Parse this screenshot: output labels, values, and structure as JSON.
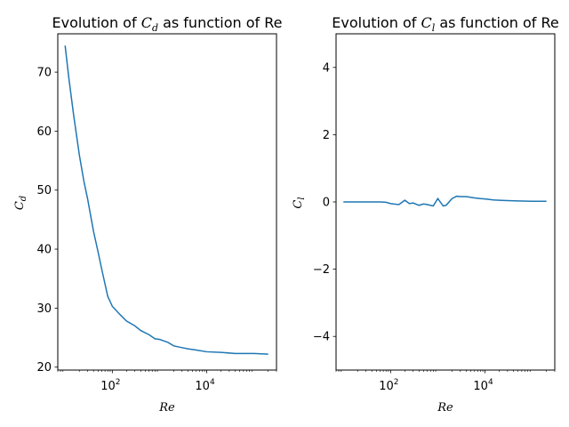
{
  "figure": {
    "background": "#ffffff",
    "line_color": "#1f77b4"
  },
  "chart_data": [
    {
      "type": "line",
      "title": "Evolution of C_d as function of Re",
      "title_prefix": "Evolution of ",
      "title_symbol": "C",
      "title_subscript": "d",
      "title_suffix": " as function of Re",
      "xlabel": "Re",
      "ylabel_symbol": "C",
      "ylabel_subscript": "d",
      "xscale": "log",
      "xlim": [
        7,
        300000
      ],
      "ylim": [
        19.5,
        76.5
      ],
      "xticks": [
        {
          "value": 100,
          "base": "10",
          "exp": "2"
        },
        {
          "value": 10000,
          "base": "10",
          "exp": "4"
        }
      ],
      "yticks": [
        {
          "value": 20,
          "label": "20"
        },
        {
          "value": 30,
          "label": "30"
        },
        {
          "value": 40,
          "label": "40"
        },
        {
          "value": 50,
          "label": "50"
        },
        {
          "value": 60,
          "label": "60"
        },
        {
          "value": 70,
          "label": "70"
        }
      ],
      "grid": false,
      "series": [
        {
          "x": [
            10,
            12,
            15,
            20,
            25,
            30,
            40,
            50,
            60,
            80,
            100,
            150,
            200,
            300,
            400,
            600,
            800,
            1000,
            1500,
            2000,
            3000,
            4000,
            6000,
            10000,
            20000,
            40000,
            60000,
            100000,
            200000
          ],
          "values": [
            74.5,
            69.0,
            63.0,
            56.0,
            51.5,
            48.5,
            43.0,
            39.5,
            36.5,
            32.0,
            30.3,
            28.8,
            27.8,
            27.0,
            26.2,
            25.5,
            24.8,
            24.7,
            24.2,
            23.6,
            23.3,
            23.1,
            22.9,
            22.6,
            22.5,
            22.3,
            22.3,
            22.3,
            22.2
          ]
        }
      ]
    },
    {
      "type": "line",
      "title": "Evolution of C_l as function of Re",
      "title_prefix": "Evolution of ",
      "title_symbol": "C",
      "title_subscript": "l",
      "title_suffix": " as function of Re",
      "xlabel": "Re",
      "ylabel_symbol": "C",
      "ylabel_subscript": "l",
      "xscale": "log",
      "xlim": [
        7,
        300000
      ],
      "ylim": [
        -5,
        5
      ],
      "xticks": [
        {
          "value": 100,
          "base": "10",
          "exp": "2"
        },
        {
          "value": 10000,
          "base": "10",
          "exp": "4"
        }
      ],
      "yticks": [
        {
          "value": -4,
          "label": "−4"
        },
        {
          "value": -2,
          "label": "−2"
        },
        {
          "value": 0,
          "label": "0"
        },
        {
          "value": 2,
          "label": "2"
        },
        {
          "value": 4,
          "label": "4"
        }
      ],
      "grid": false,
      "series": [
        {
          "x": [
            10,
            15,
            20,
            30,
            40,
            50,
            60,
            80,
            100,
            150,
            200,
            250,
            300,
            400,
            500,
            600,
            800,
            1000,
            1300,
            1500,
            2000,
            2500,
            3000,
            4000,
            6000,
            8000,
            10000,
            15000,
            20000,
            30000,
            50000,
            100000,
            200000
          ],
          "values": [
            0.0,
            0.0,
            0.0,
            0.0,
            0.0,
            0.0,
            0.0,
            -0.01,
            -0.05,
            -0.08,
            0.05,
            -0.05,
            -0.03,
            -0.1,
            -0.06,
            -0.08,
            -0.12,
            0.1,
            -0.12,
            -0.1,
            0.1,
            0.17,
            0.16,
            0.16,
            0.12,
            0.1,
            0.09,
            0.06,
            0.05,
            0.04,
            0.03,
            0.02,
            0.02
          ]
        }
      ]
    }
  ]
}
